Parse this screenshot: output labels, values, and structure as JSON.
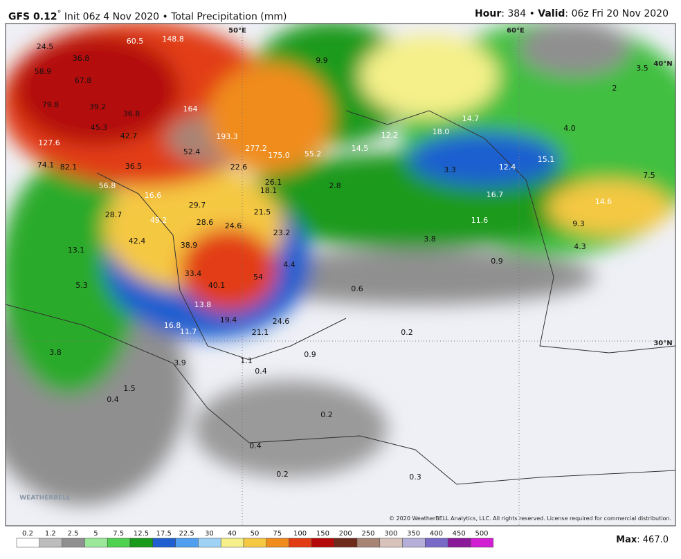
{
  "header": {
    "model": "GFS 0.12",
    "degree": "°",
    "init": "Init 06z 4 Nov 2020 • Total Precipitation (mm)",
    "hour_key": "Hour",
    "hour_val": ": 384 • ",
    "valid_key": "Valid",
    "valid_val": ": 06z Fri 20 Nov 2020"
  },
  "grid_labels": [
    "50°E",
    "60°E",
    "40°N",
    "30°N"
  ],
  "map_labels": [
    "24.5",
    "60.5",
    "148.8",
    "36.8",
    "58.9",
    "67.8",
    "79.8",
    "39.2",
    "36.8",
    "164",
    "45.3",
    "42.7",
    "193.3",
    "127.6",
    "52.4",
    "277.2",
    "175.0",
    "55.2",
    "74.1",
    "82.1",
    "36.5",
    "22.6",
    "14.5",
    "12.2",
    "18.0",
    "14.7",
    "4.0",
    "2",
    "3.5",
    "9.9",
    "15.1",
    "12.4",
    "3.3",
    "7.5",
    "26.1",
    "18.1",
    "2.8",
    "56.8",
    "16.7",
    "14.6",
    "16.6",
    "29.7",
    "21.5",
    "11.6",
    "9.3",
    "28.7",
    "49.2",
    "28.6",
    "24.6",
    "23.2",
    "3.8",
    "4.3",
    "42.4",
    "38.9",
    "13.1",
    "0.9",
    "4.4",
    "33.4",
    "54",
    "40.1",
    "5.3",
    "0.6",
    "13.8",
    "19.4",
    "24.6",
    "16.8",
    "11.7",
    "21.1",
    "0.2",
    "3.8",
    "0.9",
    "1.1",
    "3.9",
    "0.4",
    "1.5",
    "0.4",
    "0.2",
    "0.4",
    "0.2",
    "0.3"
  ],
  "colorbar": {
    "labels": [
      "0.2",
      "1.2",
      "2.5",
      "5",
      "7.5",
      "12.5",
      "17.5",
      "22.5",
      "30",
      "40",
      "50",
      "75",
      "100",
      "150",
      "200",
      "250",
      "300",
      "350",
      "400",
      "450",
      "500"
    ],
    "colors": [
      "#ffffff",
      "#bdbdbd",
      "#8f8f8f",
      "#9be89b",
      "#4fd24f",
      "#1a9a1a",
      "#1f5fd0",
      "#4f9ef0",
      "#9fd2f5",
      "#f5f08a",
      "#f5c842",
      "#f08c1e",
      "#e23c14",
      "#b40a0a",
      "#6e2a1a",
      "#a88476",
      "#d8c3bb",
      "#b4aed8",
      "#7a6ac8",
      "#8a1a9a",
      "#d21ed2"
    ]
  },
  "max_key": "Max",
  "max_val": ": 467.0",
  "copyright": "© 2020 WeatherBELL Analytics, LLC. All rights reserved. License required for commercial distribution.",
  "logo": "WEATHERBELL"
}
